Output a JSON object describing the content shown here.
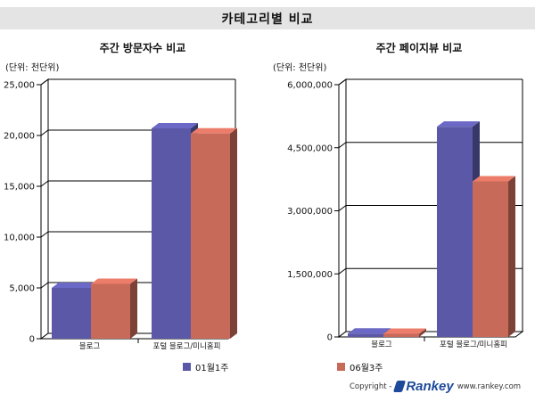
{
  "page": {
    "header_title": "카테고리별 비교",
    "footer": {
      "copyright": "Copyright -",
      "brand": "Rankey",
      "site": "www.rankey.com"
    }
  },
  "legend": [
    {
      "label": "01월1주",
      "color": "#5b58a8"
    },
    {
      "label": "06월3주",
      "color": "#c86a5a"
    }
  ],
  "chart_data": [
    {
      "type": "bar",
      "title": "주간 방문자수 비교",
      "unit_label": "(단위: 천단위)",
      "categories": [
        "블로그",
        "포털 블로그/미니홈피"
      ],
      "series": [
        {
          "name": "01월1주",
          "values": [
            5000,
            20700
          ]
        },
        {
          "name": "06월3주",
          "values": [
            5400,
            20200
          ]
        }
      ],
      "ylim": [
        0,
        25000
      ],
      "yticks": [
        0,
        5000,
        10000,
        15000,
        20000,
        25000
      ],
      "ytick_labels": [
        "0",
        "5,000",
        "10,000",
        "15,000",
        "20,000",
        "25,000"
      ],
      "grid": true
    },
    {
      "type": "bar",
      "title": "주간 페이지뷰 비교",
      "unit_label": "(단위: 천단위)",
      "categories": [
        "블로그",
        "포털 블로그/미니홈피"
      ],
      "series": [
        {
          "name": "01월1주",
          "values": [
            80000,
            5000000
          ]
        },
        {
          "name": "06월3주",
          "values": [
            75000,
            3700000
          ]
        }
      ],
      "ylim": [
        0,
        6000000
      ],
      "yticks": [
        0,
        1500000,
        3000000,
        4500000,
        6000000
      ],
      "ytick_labels": [
        "0",
        "1,500,000",
        "3,000,000",
        "4,500,000",
        "6,000,000"
      ],
      "grid": true
    }
  ]
}
